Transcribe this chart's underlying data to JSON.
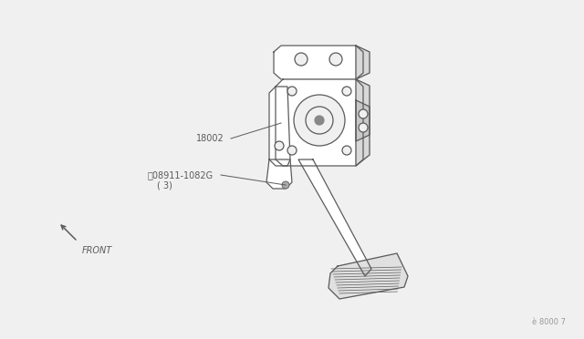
{
  "bg_color": "#f0f0f0",
  "line_color": "#5a5a5a",
  "text_color": "#5a5a5a",
  "label_color": "#888888",
  "part_label_1": "18002",
  "part_label_2": "ⓝ08911-1082G",
  "part_label_2b": "( 3)",
  "front_label": "FRONT",
  "ref_code": "è 8000 7",
  "fig_width": 6.4,
  "fig_height": 3.72,
  "dpi": 100,
  "lw": 0.9
}
